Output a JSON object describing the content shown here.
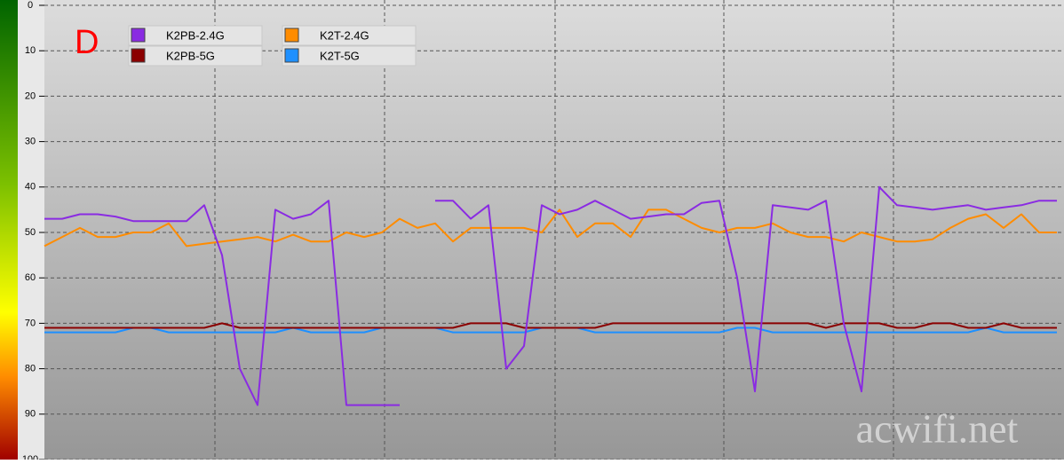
{
  "chart_data": {
    "type": "line",
    "annotation": "D",
    "watermark": "acwifi.net",
    "ylim": [
      0,
      100
    ],
    "y_reversed": true,
    "yticks": [
      0,
      10,
      20,
      30,
      40,
      50,
      60,
      70,
      80,
      90,
      100
    ],
    "grid": true,
    "legend": "upper left",
    "series": [
      {
        "name": "K2PB-2.4G",
        "color": "#8a2be2",
        "values": [
          47,
          47,
          46,
          46,
          46.5,
          47.5,
          47.5,
          47.5,
          47.5,
          44,
          55,
          80,
          88,
          45,
          47,
          46,
          43,
          88,
          88,
          88,
          88,
          null,
          43,
          43,
          47,
          44,
          80,
          75,
          44,
          46,
          45,
          43,
          45,
          47,
          46.5,
          46,
          46,
          43.5,
          43,
          60,
          85,
          44,
          44.5,
          45,
          43,
          70,
          85,
          40,
          44,
          44.5,
          45,
          44.5,
          44,
          45,
          44.5,
          44,
          43,
          43
        ]
      },
      {
        "name": "K2PB-5G",
        "color": "#8b0000",
        "values": [
          71,
          71,
          71,
          71,
          71,
          71,
          71,
          71,
          71,
          71,
          70,
          71,
          71,
          71,
          71,
          71,
          71,
          71,
          71,
          71,
          71,
          71,
          71,
          71,
          70,
          70,
          70,
          71,
          71,
          71,
          71,
          71,
          70,
          70,
          70,
          70,
          70,
          70,
          70,
          70,
          70,
          70,
          70,
          70,
          71,
          70,
          70,
          70,
          71,
          71,
          70,
          70,
          71,
          71,
          70,
          71,
          71,
          71
        ]
      },
      {
        "name": "K2T-2.4G",
        "color": "#ff8c00",
        "values": [
          53,
          51,
          49,
          51,
          51,
          50,
          50,
          48,
          53,
          52.5,
          52,
          51.5,
          51,
          52,
          50.5,
          52,
          52,
          50,
          51,
          50,
          47,
          49,
          48,
          52,
          49,
          49,
          49,
          49,
          50,
          45,
          51,
          48,
          48,
          51,
          45,
          45,
          47,
          49,
          50,
          49,
          49,
          48,
          50,
          51,
          51,
          52,
          50,
          51,
          52,
          52,
          51.5,
          49,
          47,
          46,
          49,
          46,
          50,
          50
        ]
      },
      {
        "name": "K2T-5G",
        "color": "#1e90ff",
        "values": [
          72,
          72,
          72,
          72,
          72,
          71,
          71,
          72,
          72,
          72,
          72,
          72,
          72,
          72,
          71,
          72,
          72,
          72,
          72,
          71,
          71,
          71,
          71,
          72,
          72,
          72,
          72,
          72,
          71,
          71,
          71,
          72,
          72,
          72,
          72,
          72,
          72,
          72,
          72,
          71,
          71,
          72,
          72,
          72,
          72,
          72,
          72,
          72,
          72,
          72,
          72,
          72,
          72,
          71,
          72,
          72,
          72,
          72
        ]
      }
    ]
  }
}
